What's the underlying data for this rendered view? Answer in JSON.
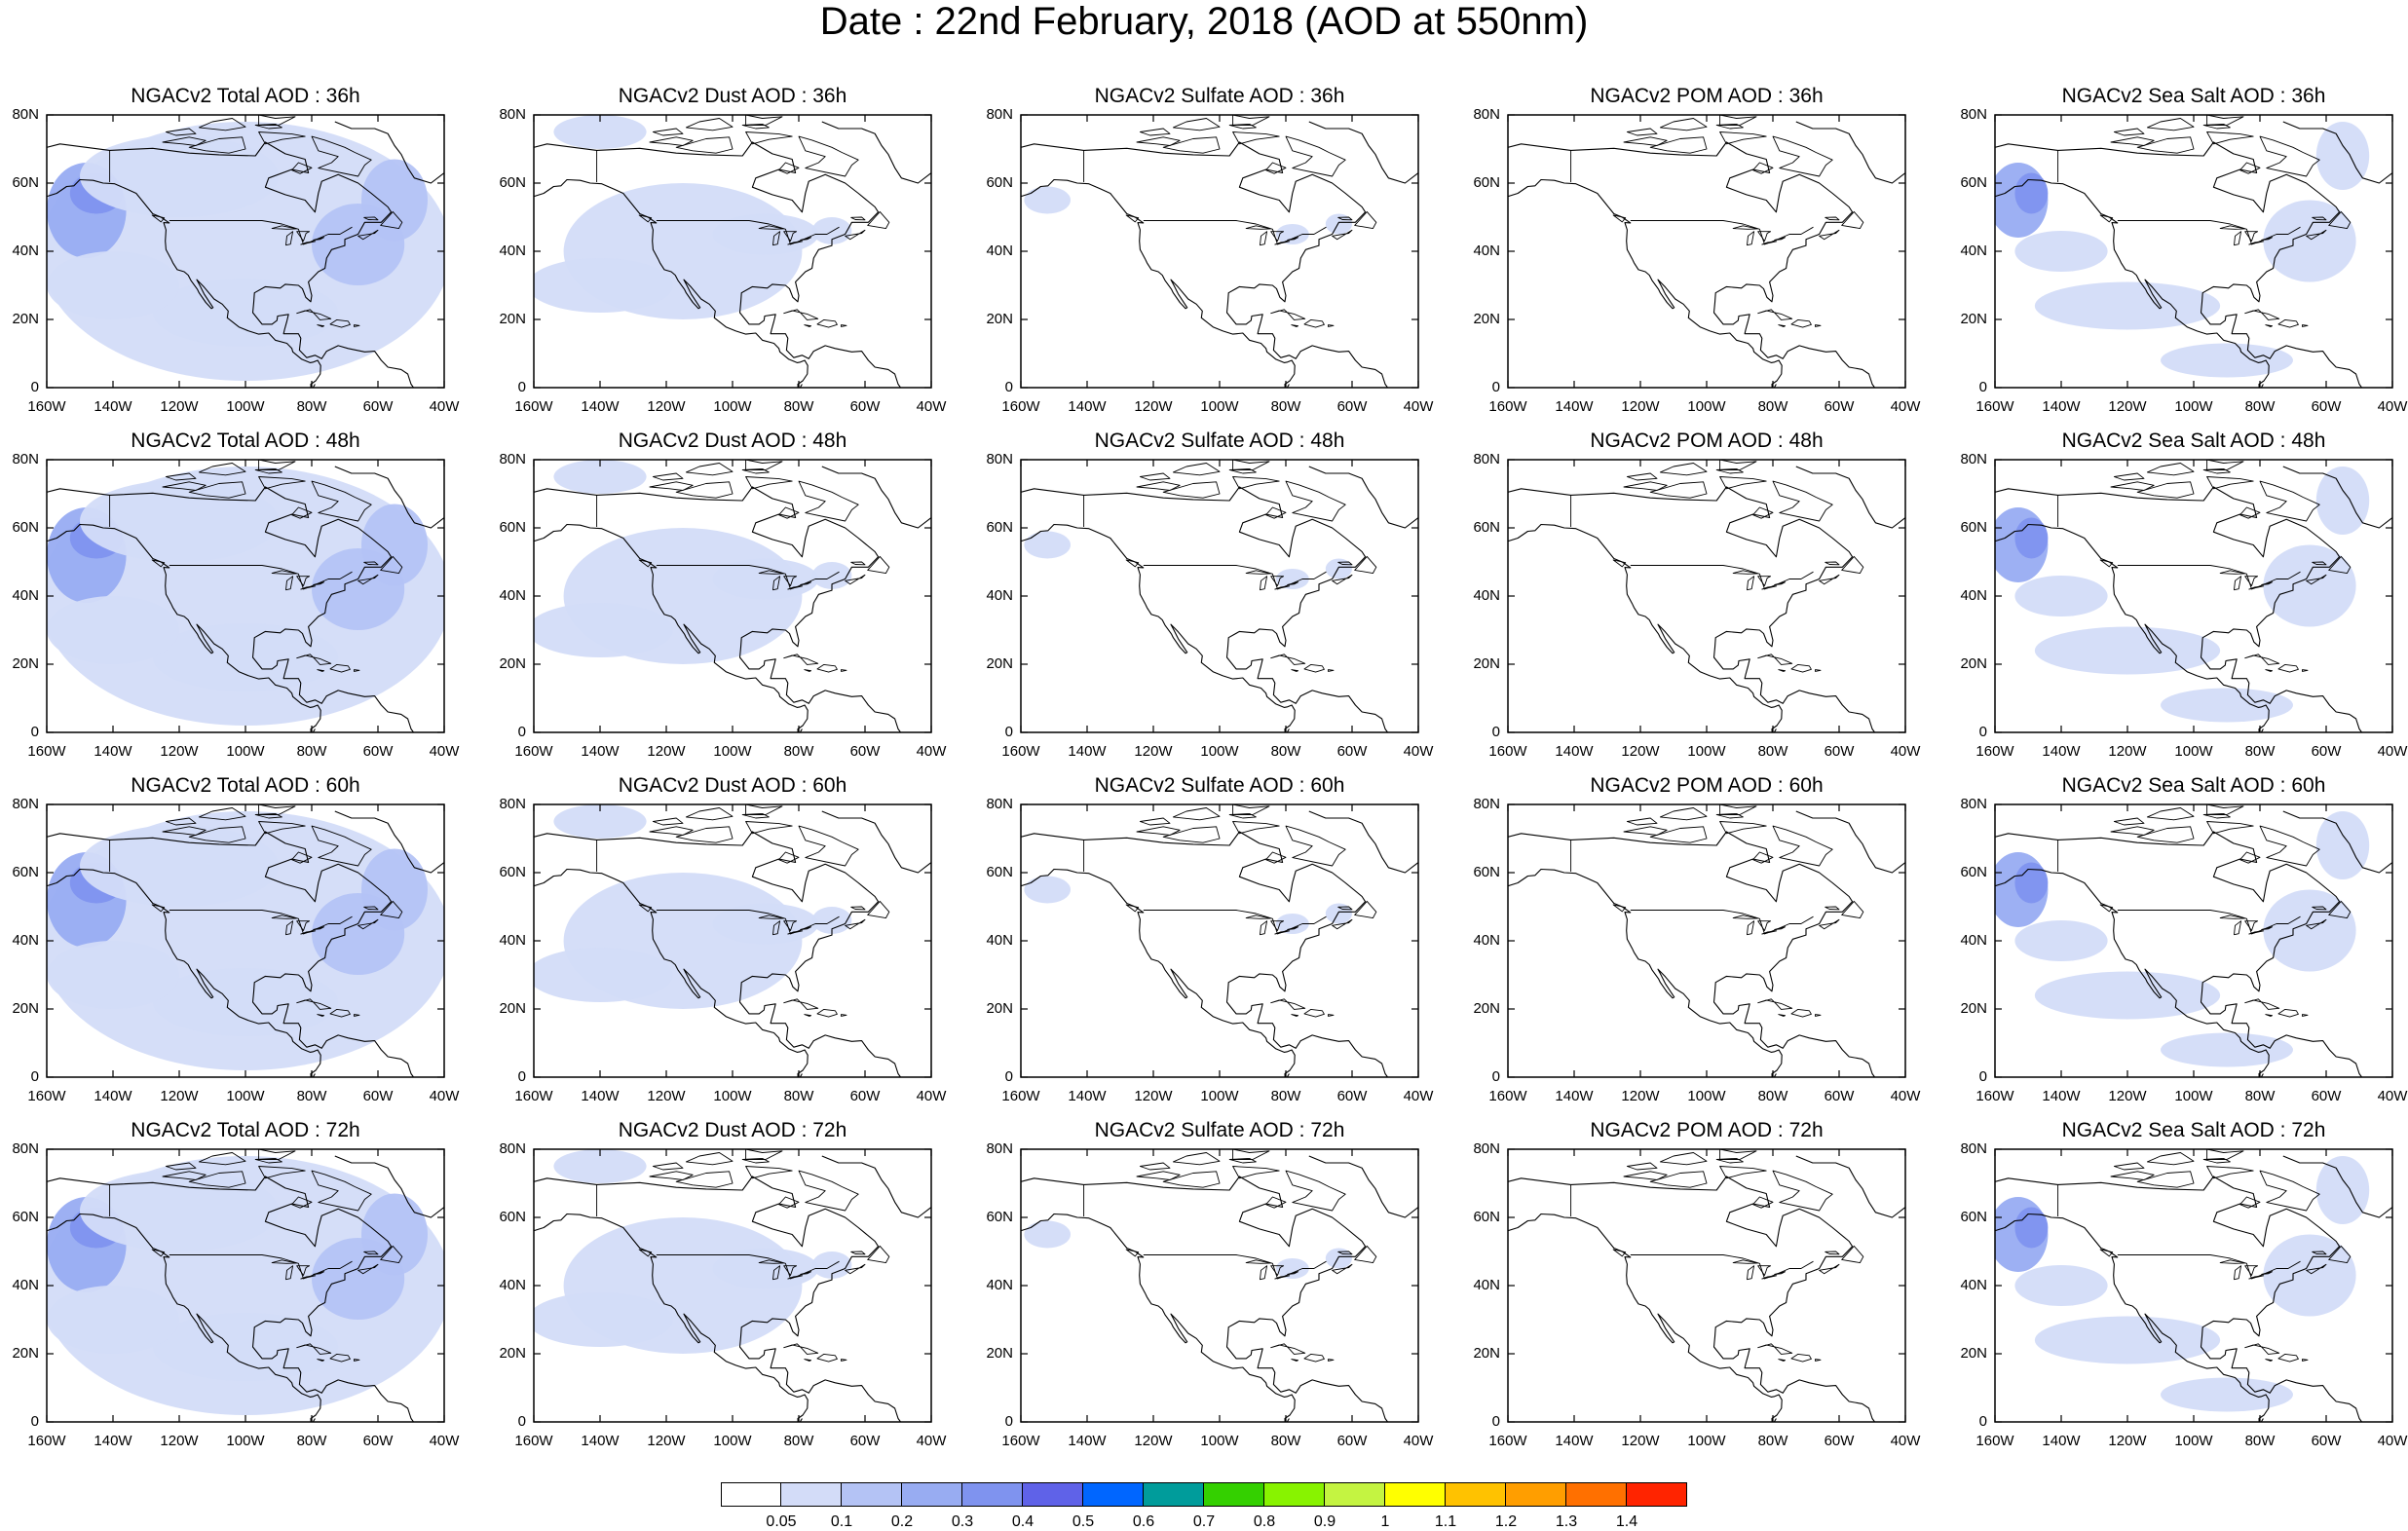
{
  "figure": {
    "title": "Date : 22nd February, 2018 (AOD at 550nm)"
  },
  "map": {
    "lon_range": [
      -160,
      -40
    ],
    "lat_range": [
      0,
      80
    ],
    "x_ticks": [
      "160W",
      "140W",
      "120W",
      "100W",
      "80W",
      "60W",
      "40W"
    ],
    "y_ticks": [
      "0",
      "20N",
      "40N",
      "60N",
      "80N"
    ],
    "coastline_color": "#000000"
  },
  "panels": [
    {
      "title": "NGACv2 Total AOD : 36h",
      "variable": "total",
      "forecast_hour": 36
    },
    {
      "title": "NGACv2 Dust AOD : 36h",
      "variable": "dust",
      "forecast_hour": 36
    },
    {
      "title": "NGACv2 Sulfate AOD : 36h",
      "variable": "sulfate",
      "forecast_hour": 36
    },
    {
      "title": "NGACv2 POM AOD : 36h",
      "variable": "pom",
      "forecast_hour": 36
    },
    {
      "title": "NGACv2 Sea Salt AOD : 36h",
      "variable": "seasalt",
      "forecast_hour": 36
    },
    {
      "title": "NGACv2 Total AOD : 48h",
      "variable": "total",
      "forecast_hour": 48
    },
    {
      "title": "NGACv2 Dust AOD : 48h",
      "variable": "dust",
      "forecast_hour": 48
    },
    {
      "title": "NGACv2 Sulfate AOD : 48h",
      "variable": "sulfate",
      "forecast_hour": 48
    },
    {
      "title": "NGACv2 POM AOD : 48h",
      "variable": "pom",
      "forecast_hour": 48
    },
    {
      "title": "NGACv2 Sea Salt AOD : 48h",
      "variable": "seasalt",
      "forecast_hour": 48
    },
    {
      "title": "NGACv2 Total AOD : 60h",
      "variable": "total",
      "forecast_hour": 60
    },
    {
      "title": "NGACv2 Dust AOD : 60h",
      "variable": "dust",
      "forecast_hour": 60
    },
    {
      "title": "NGACv2 Sulfate AOD : 60h",
      "variable": "sulfate",
      "forecast_hour": 60
    },
    {
      "title": "NGACv2 POM AOD : 60h",
      "variable": "pom",
      "forecast_hour": 60
    },
    {
      "title": "NGACv2 Sea Salt AOD : 60h",
      "variable": "seasalt",
      "forecast_hour": 60
    },
    {
      "title": "NGACv2 Total AOD : 72h",
      "variable": "total",
      "forecast_hour": 72
    },
    {
      "title": "NGACv2 Dust AOD : 72h",
      "variable": "dust",
      "forecast_hour": 72
    },
    {
      "title": "NGACv2 Sulfate AOD : 72h",
      "variable": "sulfate",
      "forecast_hour": 72
    },
    {
      "title": "NGACv2 POM AOD : 72h",
      "variable": "pom",
      "forecast_hour": 72
    },
    {
      "title": "NGACv2 Sea Salt  AOD : 72h",
      "variable": "seasalt",
      "forecast_hour": 72
    }
  ],
  "colorbar": {
    "labels": [
      "0.05",
      "0.1",
      "0.2",
      "0.3",
      "0.4",
      "0.5",
      "0.6",
      "0.7",
      "0.8",
      "0.9",
      "1",
      "1.1",
      "1.2",
      "1.3",
      "1.4"
    ],
    "colors": [
      "#ffffff",
      "#d3dcf8",
      "#b4c3f5",
      "#98acf2",
      "#7f93ef",
      "#5f62e8",
      "#0066ff",
      "#009c9b",
      "#34d000",
      "#88f300",
      "#c4f441",
      "#ffff00",
      "#ffc200",
      "#ff9e00",
      "#ff7000",
      "#ff2400"
    ]
  }
}
